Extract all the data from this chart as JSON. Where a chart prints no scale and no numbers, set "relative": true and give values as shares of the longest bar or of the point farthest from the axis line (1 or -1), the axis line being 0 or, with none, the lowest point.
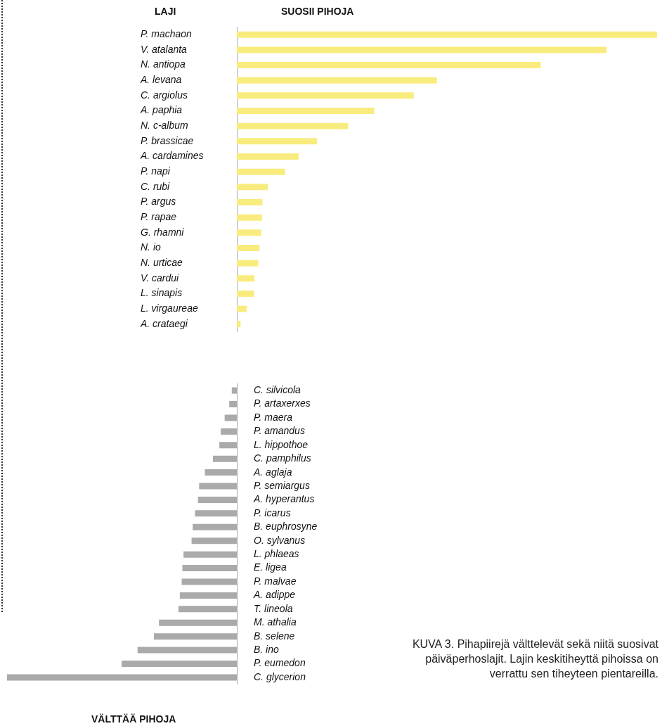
{
  "chart_data": [
    {
      "type": "bar",
      "orientation": "horizontal",
      "relative": true,
      "title": "SUOSII PIHOJA",
      "ylabel": "LAJI",
      "color": "#f9ec7e",
      "categories": [
        "P. machaon",
        "V. atalanta",
        "N. antiopa",
        "A. levana",
        "C. argiolus",
        "A. paphia",
        "N. c-album",
        "P. brassicae",
        "A. cardamines",
        "P. napi",
        "C. rubi",
        "P. argus",
        "P. rapae",
        "G. rhamni",
        "N. io",
        "N. urticae",
        "V. cardui",
        "L. sinapis",
        "L. virgaureae",
        "A. crataegi"
      ],
      "values": [
        1,
        0.88,
        0.723,
        0.476,
        0.421,
        0.327,
        0.265,
        0.191,
        0.147,
        0.115,
        0.074,
        0.061,
        0.06,
        0.058,
        0.054,
        0.051,
        0.042,
        0.041,
        0.024,
        0.009
      ]
    },
    {
      "type": "bar",
      "orientation": "horizontal",
      "relative": true,
      "xlabel": "VÄLTTÄÄ PIHOJA",
      "color": "#aaaaaa",
      "categories": [
        "C. silvicola",
        "P. artaxerxes",
        "P. maera",
        "P. amandus",
        "L. hippothoe",
        "C. pamphilus",
        "A. aglaja",
        "P. semiargus",
        "A. hyperantus",
        "P. icarus",
        "B. euphrosyne",
        "O. sylvanus",
        "L. phlaeas",
        "E. ligea",
        "P. malvae",
        "A. adippe",
        "T. lineola",
        "M. athalia",
        "B. selene",
        "B. ino",
        "P. eumedon",
        "C. glycerion"
      ],
      "values": [
        -0.022,
        -0.033,
        -0.053,
        -0.07,
        -0.076,
        -0.104,
        -0.139,
        -0.164,
        -0.169,
        -0.182,
        -0.192,
        -0.197,
        -0.232,
        -0.237,
        -0.24,
        -0.248,
        -0.254,
        -0.339,
        -0.361,
        -0.432,
        -0.501,
        -1
      ],
      "annotations": [
        "KUVA 3. Pihapiirejä välttelevät sekä niitä suosivat päiväperhoslajit. Lajin keskitiheyttä pihoissa on verrattu sen tiheyteen pientareilla."
      ]
    }
  ]
}
